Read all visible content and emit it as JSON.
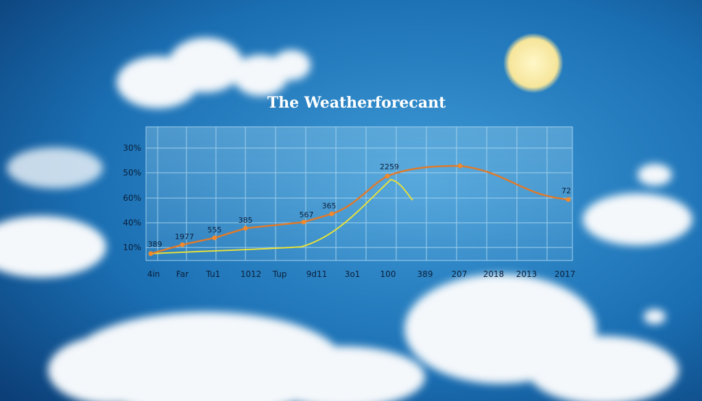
{
  "title": "The Weatherforecant",
  "y_axis_labels": [
    "30%",
    "50%",
    "60%",
    "40%",
    "10%"
  ],
  "x_axis_labels": [
    "4in",
    "Far",
    "Tu1",
    "1012",
    "Tup",
    "9d11",
    "3o1",
    "100",
    "389",
    "207",
    "2018",
    "2013",
    "2017"
  ],
  "point_labels": [
    "389",
    "1977",
    "555",
    "385",
    "567",
    "365",
    "2259",
    "72"
  ]
}
